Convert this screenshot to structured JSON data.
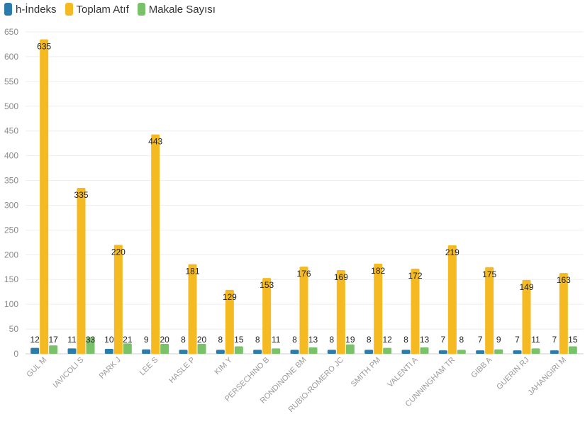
{
  "chart_data": {
    "type": "bar",
    "categories": [
      "GUL M",
      "IAVICOLI S",
      "PARK J",
      "LEE S",
      "HASLE P",
      "KIM Y",
      "PERSECHINO B",
      "RONDINONE BM",
      "RUBIO-ROMERO JC",
      "SMITH PM",
      "VALENTI A",
      "CUNNINGHAM TR",
      "GIBB A",
      "GUERIN RJ",
      "JAHANGIRI M"
    ],
    "series": [
      {
        "name": "h-İndeks",
        "color": "#2b7bab",
        "values": [
          12,
          11,
          10,
          9,
          8,
          8,
          8,
          8,
          8,
          8,
          8,
          7,
          7,
          7,
          7
        ]
      },
      {
        "name": "Toplam Atıf",
        "color": "#f5b921",
        "values": [
          635,
          335,
          220,
          443,
          181,
          129,
          153,
          176,
          169,
          182,
          172,
          219,
          175,
          149,
          163
        ]
      },
      {
        "name": "Makale Sayısı",
        "color": "#79c26a",
        "values": [
          17,
          33,
          21,
          20,
          20,
          15,
          11,
          13,
          19,
          12,
          13,
          8,
          9,
          11,
          15
        ]
      }
    ],
    "yticks": [
      0,
      50,
      100,
      150,
      200,
      250,
      300,
      350,
      400,
      450,
      500,
      550,
      600,
      650
    ],
    "ylim": [
      0,
      650
    ],
    "grid": true,
    "legend": "top-left"
  }
}
